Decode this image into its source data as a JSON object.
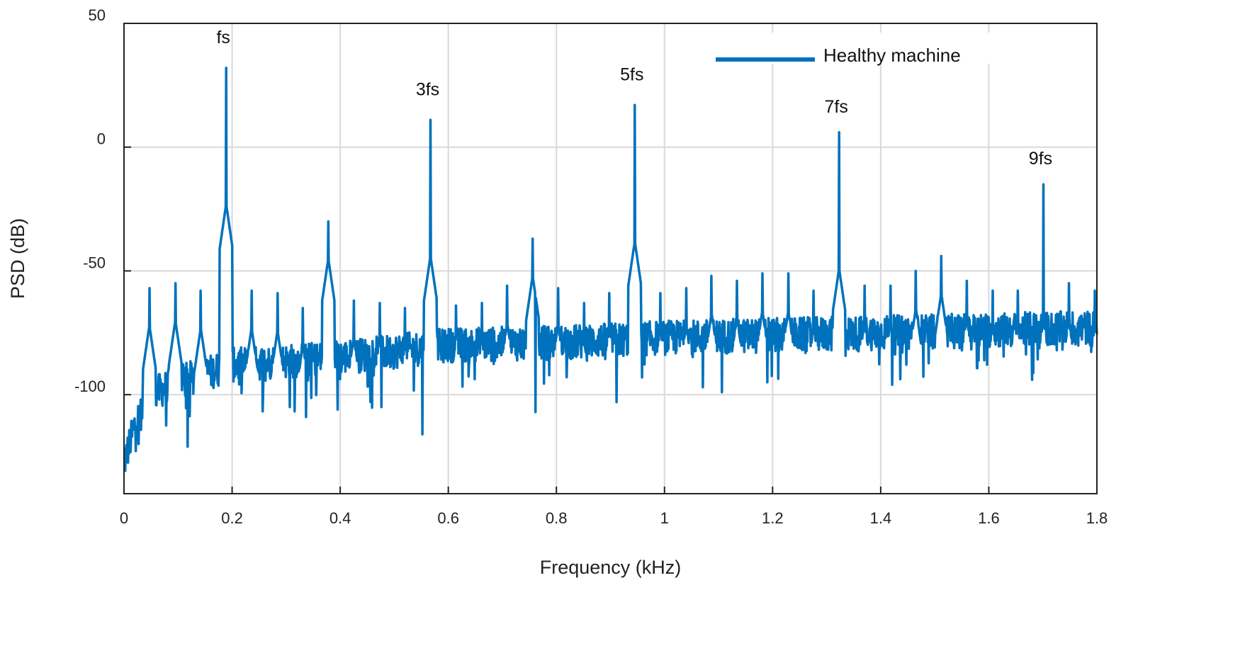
{
  "chart_data": {
    "type": "line",
    "title": "",
    "xlabel": "Frequency (kHz)",
    "ylabel": "PSD (dB)",
    "xlim": [
      0,
      1.8
    ],
    "ylim": [
      -140,
      50
    ],
    "xticks": [
      0,
      0.2,
      0.4,
      0.6,
      0.8,
      1,
      1.2,
      1.4,
      1.6,
      1.8
    ],
    "xtick_labels": [
      "0",
      "0.2",
      "0.4",
      "0.6",
      "0.8",
      "1",
      "1.2",
      "1.4",
      "1.6",
      "1.8"
    ],
    "yticks": [
      50,
      0,
      -50,
      -100
    ],
    "ytick_labels": [
      "50",
      "0",
      "-50",
      "-100"
    ],
    "grid": true,
    "legend": {
      "position": "top-right",
      "entries": [
        "Healthy machine"
      ]
    },
    "series": [
      {
        "name": "Healthy machine",
        "color": "#0072BD",
        "noise_floor": [
          [
            0,
            -128
          ],
          [
            0.02,
            -112
          ],
          [
            0.05,
            -100
          ],
          [
            0.1,
            -95
          ],
          [
            0.2,
            -88
          ],
          [
            0.4,
            -85
          ],
          [
            0.6,
            -80
          ],
          [
            0.8,
            -79
          ],
          [
            1.0,
            -77
          ],
          [
            1.2,
            -76
          ],
          [
            1.4,
            -75
          ],
          [
            1.6,
            -74
          ],
          [
            1.8,
            -73
          ]
        ],
        "peaks": [
          {
            "x": 0.047,
            "y": -57
          },
          {
            "x": 0.095,
            "y": -55
          },
          {
            "x": 0.142,
            "y": -58
          },
          {
            "x": 0.189,
            "y": 32
          },
          {
            "x": 0.236,
            "y": -58
          },
          {
            "x": 0.284,
            "y": -59
          },
          {
            "x": 0.331,
            "y": -65
          },
          {
            "x": 0.378,
            "y": -30
          },
          {
            "x": 0.425,
            "y": -62
          },
          {
            "x": 0.473,
            "y": -63
          },
          {
            "x": 0.52,
            "y": -65
          },
          {
            "x": 0.567,
            "y": 11
          },
          {
            "x": 0.614,
            "y": -64
          },
          {
            "x": 0.662,
            "y": -63
          },
          {
            "x": 0.709,
            "y": -56
          },
          {
            "x": 0.756,
            "y": -37
          },
          {
            "x": 0.803,
            "y": -57
          },
          {
            "x": 0.851,
            "y": -63
          },
          {
            "x": 0.898,
            "y": -59
          },
          {
            "x": 0.945,
            "y": 17
          },
          {
            "x": 0.992,
            "y": -59
          },
          {
            "x": 1.04,
            "y": -57
          },
          {
            "x": 1.087,
            "y": -52
          },
          {
            "x": 1.134,
            "y": -54
          },
          {
            "x": 1.181,
            "y": -51
          },
          {
            "x": 1.229,
            "y": -51
          },
          {
            "x": 1.276,
            "y": -58
          },
          {
            "x": 1.323,
            "y": 6
          },
          {
            "x": 1.37,
            "y": -56
          },
          {
            "x": 1.418,
            "y": -56
          },
          {
            "x": 1.465,
            "y": -50
          },
          {
            "x": 1.512,
            "y": -44
          },
          {
            "x": 1.559,
            "y": -54
          },
          {
            "x": 1.607,
            "y": -58
          },
          {
            "x": 1.654,
            "y": -58
          },
          {
            "x": 1.701,
            "y": -15
          },
          {
            "x": 1.748,
            "y": -55
          },
          {
            "x": 1.796,
            "y": -58
          }
        ],
        "dips": [
          {
            "x": 0.118,
            "y": -121
          },
          {
            "x": 0.307,
            "y": -105
          },
          {
            "x": 0.337,
            "y": -109
          },
          {
            "x": 0.395,
            "y": -106
          },
          {
            "x": 0.476,
            "y": -105
          },
          {
            "x": 0.552,
            "y": -116
          },
          {
            "x": 0.761,
            "y": -107
          },
          {
            "x": 0.911,
            "y": -103
          },
          {
            "x": 1.071,
            "y": -97
          },
          {
            "x": 1.19,
            "y": -95
          },
          {
            "x": 1.421,
            "y": -96
          },
          {
            "x": 1.68,
            "y": -94
          }
        ]
      }
    ],
    "annotations": [
      {
        "text": "fs",
        "x": 0.189,
        "y": 42
      },
      {
        "text": "3fs",
        "x": 0.567,
        "y": 21
      },
      {
        "text": "5fs",
        "x": 0.945,
        "y": 27
      },
      {
        "text": "7fs",
        "x": 1.323,
        "y": 14
      },
      {
        "text": "9fs",
        "x": 1.701,
        "y": -7
      }
    ]
  }
}
